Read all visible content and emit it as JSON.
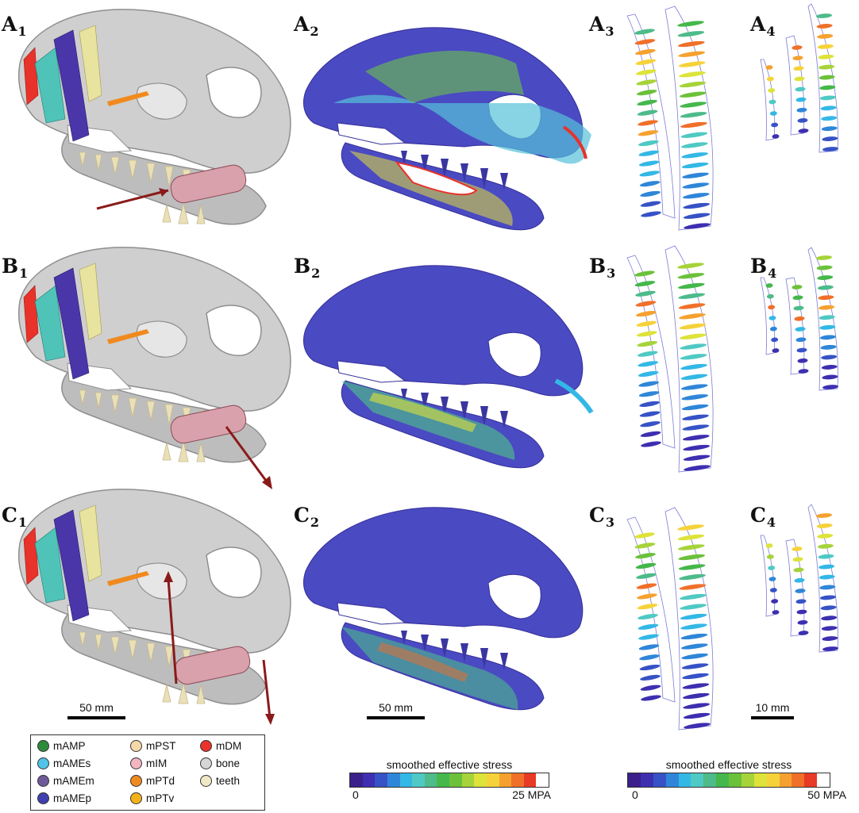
{
  "panel_labels": [
    {
      "letter": "A",
      "sub": "1"
    },
    {
      "letter": "A",
      "sub": "2"
    },
    {
      "letter": "A",
      "sub": "3"
    },
    {
      "letter": "A",
      "sub": "4"
    },
    {
      "letter": "B",
      "sub": "1"
    },
    {
      "letter": "B",
      "sub": "2"
    },
    {
      "letter": "B",
      "sub": "3"
    },
    {
      "letter": "B",
      "sub": "4"
    },
    {
      "letter": "C",
      "sub": "1"
    },
    {
      "letter": "C",
      "sub": "2"
    },
    {
      "letter": "C",
      "sub": "3"
    },
    {
      "letter": "C",
      "sub": "4"
    }
  ],
  "scale_bars": [
    "50 mm",
    "50 mm",
    "10 mm"
  ],
  "legend": [
    {
      "label": "mAMP",
      "color": "#2e8b3a"
    },
    {
      "label": "mAMEs",
      "color": "#4fc3e8"
    },
    {
      "label": "mAMEm",
      "color": "#6e5a9a"
    },
    {
      "label": "mAMEp",
      "color": "#3f3fb0"
    },
    {
      "label": "mPST",
      "color": "#f6d7a8"
    },
    {
      "label": "mIM",
      "color": "#f2b6c0"
    },
    {
      "label": "mPTd",
      "color": "#f08a1e"
    },
    {
      "label": "mPTv",
      "color": "#f3b21a"
    },
    {
      "label": "mDM",
      "color": "#e8322a"
    },
    {
      "label": "bone",
      "color": "#d6d6d6"
    },
    {
      "label": "teeth",
      "color": "#efe8c6"
    }
  ],
  "colorbars": [
    {
      "title": "smoothed effective stress",
      "min": "0",
      "max": "25 MPA"
    },
    {
      "title": "smoothed effective stress",
      "min": "0",
      "max": "50 MPA"
    }
  ],
  "colorscale": [
    "#3b1f8a",
    "#3d2fb0",
    "#3652c6",
    "#2f86d8",
    "#33b8e6",
    "#4fc9c4",
    "#4dbb8a",
    "#45b74b",
    "#6cc13b",
    "#a6d33a",
    "#dde33a",
    "#f6d23a",
    "#f6a12f",
    "#f0702a",
    "#e83a25",
    "#ffffff"
  ]
}
